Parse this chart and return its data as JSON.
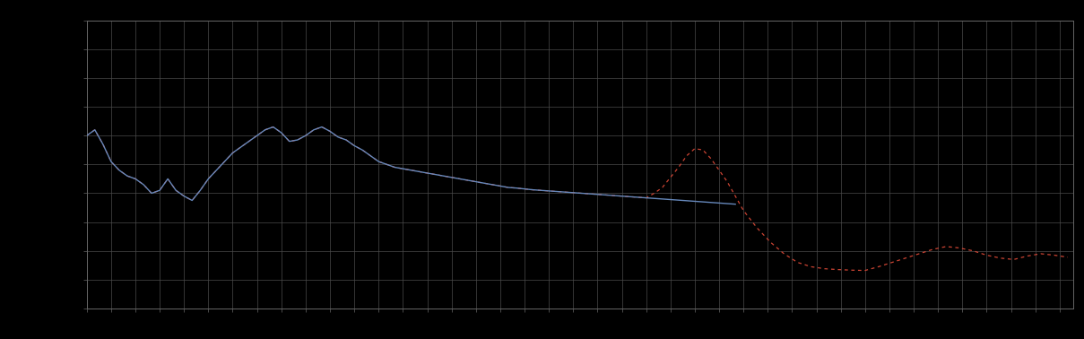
{
  "background_color": "#000000",
  "plot_bg_color": "#000000",
  "grid_color": "#4a4a4a",
  "axes_color": "#666666",
  "tick_color": "#666666",
  "blue_line_color": "#6688bb",
  "red_line_color": "#cc4433",
  "ylim": [
    0,
    10
  ],
  "xlim": [
    0,
    365
  ],
  "figsize": [
    12.09,
    3.78
  ],
  "dpi": 100,
  "blue_x": [
    0,
    3,
    6,
    9,
    12,
    15,
    18,
    21,
    24,
    27,
    30,
    33,
    36,
    39,
    42,
    45,
    48,
    51,
    54,
    57,
    60,
    63,
    66,
    69,
    72,
    75,
    78,
    81,
    84,
    87,
    90,
    93,
    96,
    99,
    102,
    105,
    108,
    111,
    114,
    117,
    120,
    123,
    126,
    129,
    132,
    135,
    138,
    141,
    144,
    147,
    150,
    153,
    156,
    159,
    162,
    165,
    168,
    171,
    174,
    177,
    180,
    183,
    186,
    189,
    192,
    195,
    198,
    201,
    204,
    207,
    210,
    213,
    216,
    219,
    222,
    225,
    228,
    231,
    234,
    237,
    240
  ],
  "blue_y": [
    6.0,
    6.2,
    5.7,
    5.1,
    4.8,
    4.6,
    4.5,
    4.3,
    4.0,
    4.1,
    4.5,
    4.1,
    3.9,
    3.75,
    4.1,
    4.5,
    4.8,
    5.1,
    5.4,
    5.6,
    5.8,
    6.0,
    6.2,
    6.3,
    6.1,
    5.8,
    5.85,
    6.0,
    6.2,
    6.3,
    6.15,
    5.95,
    5.85,
    5.65,
    5.5,
    5.3,
    5.1,
    5.0,
    4.9,
    4.85,
    4.8,
    4.75,
    4.7,
    4.65,
    4.6,
    4.55,
    4.5,
    4.45,
    4.4,
    4.35,
    4.3,
    4.25,
    4.2,
    4.18,
    4.15,
    4.12,
    4.1,
    4.08,
    4.06,
    4.04,
    4.02,
    4.0,
    3.98,
    3.96,
    3.94,
    3.92,
    3.9,
    3.88,
    3.86,
    3.84,
    3.82,
    3.8,
    3.78,
    3.76,
    3.74,
    3.72,
    3.7,
    3.68,
    3.66,
    3.64,
    3.62
  ],
  "red_x": [
    0,
    3,
    6,
    9,
    12,
    15,
    18,
    21,
    24,
    27,
    30,
    33,
    36,
    39,
    42,
    45,
    48,
    51,
    54,
    57,
    60,
    63,
    66,
    69,
    72,
    75,
    78,
    81,
    84,
    87,
    90,
    93,
    96,
    99,
    102,
    105,
    108,
    111,
    114,
    117,
    120,
    123,
    126,
    129,
    132,
    135,
    138,
    141,
    144,
    147,
    150,
    153,
    156,
    159,
    162,
    165,
    168,
    171,
    174,
    177,
    180,
    183,
    186,
    189,
    192,
    195,
    198,
    201,
    204,
    207,
    210,
    213,
    216,
    219,
    222,
    225,
    228,
    231,
    234,
    237,
    240,
    243,
    248,
    253,
    258,
    263,
    268,
    273,
    278,
    283,
    288,
    293,
    298,
    303,
    308,
    313,
    318,
    323,
    328,
    333,
    338,
    343,
    348,
    353,
    358,
    363
  ],
  "red_y": [
    6.0,
    6.2,
    5.7,
    5.1,
    4.8,
    4.6,
    4.5,
    4.3,
    4.0,
    4.1,
    4.5,
    4.1,
    3.9,
    3.75,
    4.1,
    4.5,
    4.8,
    5.1,
    5.4,
    5.6,
    5.8,
    6.0,
    6.2,
    6.3,
    6.1,
    5.8,
    5.85,
    6.0,
    6.2,
    6.3,
    6.15,
    5.95,
    5.85,
    5.65,
    5.5,
    5.3,
    5.1,
    5.0,
    4.9,
    4.85,
    4.8,
    4.75,
    4.7,
    4.65,
    4.6,
    4.55,
    4.5,
    4.45,
    4.4,
    4.35,
    4.3,
    4.25,
    4.2,
    4.18,
    4.15,
    4.12,
    4.1,
    4.08,
    4.06,
    4.04,
    4.02,
    4.0,
    3.98,
    3.96,
    3.94,
    3.92,
    3.9,
    3.88,
    3.86,
    3.84,
    4.0,
    4.2,
    4.55,
    4.9,
    5.3,
    5.55,
    5.5,
    5.2,
    4.8,
    4.4,
    3.9,
    3.4,
    2.8,
    2.3,
    1.9,
    1.6,
    1.45,
    1.38,
    1.35,
    1.33,
    1.32,
    1.45,
    1.6,
    1.75,
    1.9,
    2.05,
    2.15,
    2.1,
    2.0,
    1.85,
    1.75,
    1.7,
    1.82,
    1.9,
    1.85,
    1.78
  ]
}
